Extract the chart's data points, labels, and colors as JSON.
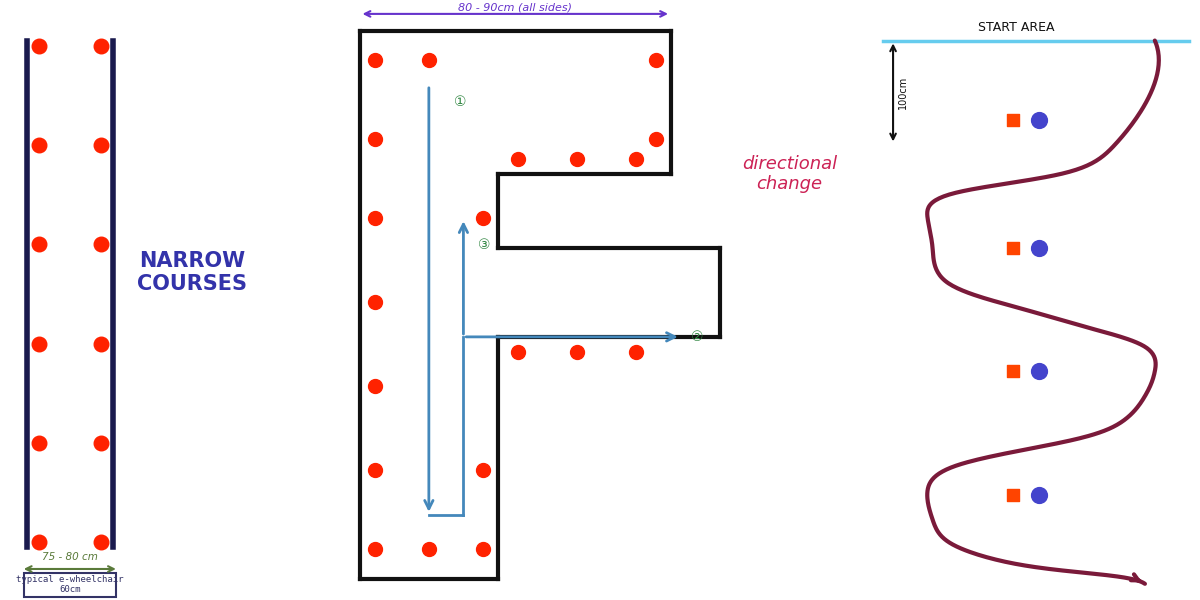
{
  "bg_color": "#ffffff",
  "panel1": {
    "wall_color": "#1a1a4e",
    "wall_lw": 4,
    "dot_color": "#ff2200",
    "dot_size": 110,
    "arrow_color": "#5a7a3a",
    "arrow_label": "75 - 80 cm",
    "box_text": "typical e-wheelchair\n60cm",
    "title": "NARROW\nCOURSES",
    "title_color": "#3333aa",
    "title_fontsize": 15
  },
  "panel2": {
    "wall_color": "#111111",
    "wall_lw": 3,
    "dot_color": "#ff2200",
    "dot_size": 100,
    "arrow_color": "#4488bb",
    "dim_color": "#6633cc",
    "title": "directional\nchange",
    "title_color": "#cc2255",
    "title_fontsize": 13,
    "num_color": "#338844"
  },
  "panel3": {
    "curve_color": "#7a1a3a",
    "curve_lw": 3,
    "start_line_color": "#66ccee",
    "dot_red": "#ff4400",
    "dot_blue": "#4444cc",
    "dot_size_r": 70,
    "dot_size_b": 130,
    "title": "START AREA",
    "title_color": "#111111",
    "title_fontsize": 9,
    "arrow_color": "#111111",
    "label_100cm": "100cm"
  }
}
